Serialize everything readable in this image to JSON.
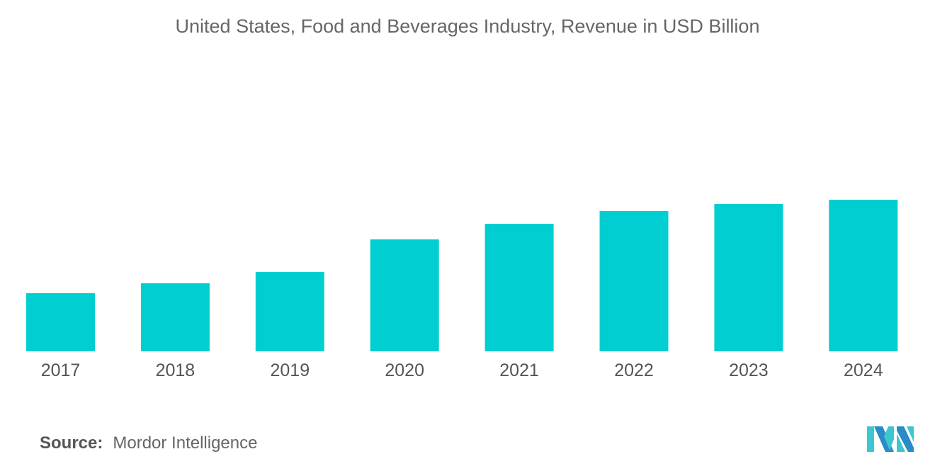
{
  "chart_data": {
    "type": "bar",
    "title": "United States, Food and Beverages Industry, Revenue in USD Billion",
    "categories": [
      "2017",
      "2018",
      "2019",
      "2020",
      "2021",
      "2022",
      "2023",
      "2024"
    ],
    "values": [
      82,
      96,
      112,
      158,
      180,
      198,
      208,
      214
    ],
    "values_note_relative": true,
    "ylim": [
      0,
      250
    ],
    "grid": false,
    "xlabel": "",
    "ylabel": "",
    "bar_color": "#00CED1"
  },
  "source": {
    "label": "Source:",
    "text": "Mordor Intelligence"
  },
  "logo": {
    "colors": [
      "#2A8BC6",
      "#3CC7D0"
    ]
  }
}
